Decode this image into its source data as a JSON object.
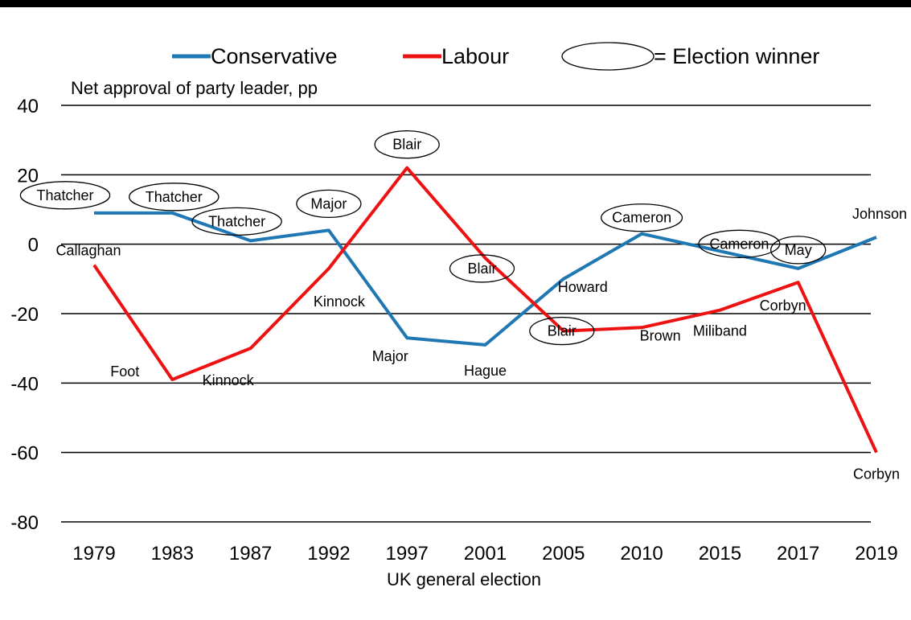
{
  "chart_data": {
    "type": "line",
    "title": "",
    "xlabel": "UK general election",
    "ylabel": "Net approval of party leader, pp",
    "categories": [
      "1979",
      "1983",
      "1987",
      "1992",
      "1997",
      "2001",
      "2005",
      "2010",
      "2015",
      "2017",
      "2019"
    ],
    "ylim": [
      -80,
      40
    ],
    "yticks": [
      40,
      20,
      0,
      -20,
      -40,
      -60,
      -80
    ],
    "grid": "horizontal",
    "legend_position": "top",
    "series": [
      {
        "name": "Conservative",
        "color": "#1f77b4",
        "values": [
          9,
          9,
          1,
          4,
          -27,
          -29,
          -10,
          3,
          -2,
          -7,
          2
        ],
        "labels": [
          "Thatcher",
          "Thatcher",
          "Thatcher",
          "Major",
          "Major",
          "Hague",
          "Howard",
          "Cameron",
          "Cameron",
          "May",
          "Johnson"
        ],
        "winner": [
          true,
          true,
          true,
          true,
          false,
          false,
          false,
          true,
          true,
          true,
          false
        ]
      },
      {
        "name": "Labour",
        "color": "#ee1111",
        "values": [
          -6,
          -39,
          -30,
          -7,
          22,
          -4,
          -25,
          -24,
          -19,
          -11,
          -60
        ],
        "labels": [
          "Callaghan",
          "Foot",
          "Kinnock",
          "Kinnock",
          "Blair",
          "Blair",
          "Blair",
          "Brown",
          "Miliband",
          "Corbyn",
          "Corbyn"
        ],
        "winner": [
          false,
          false,
          false,
          false,
          true,
          true,
          true,
          false,
          false,
          false,
          false
        ]
      }
    ],
    "legend": {
      "winner_label": "= Election winner"
    }
  }
}
